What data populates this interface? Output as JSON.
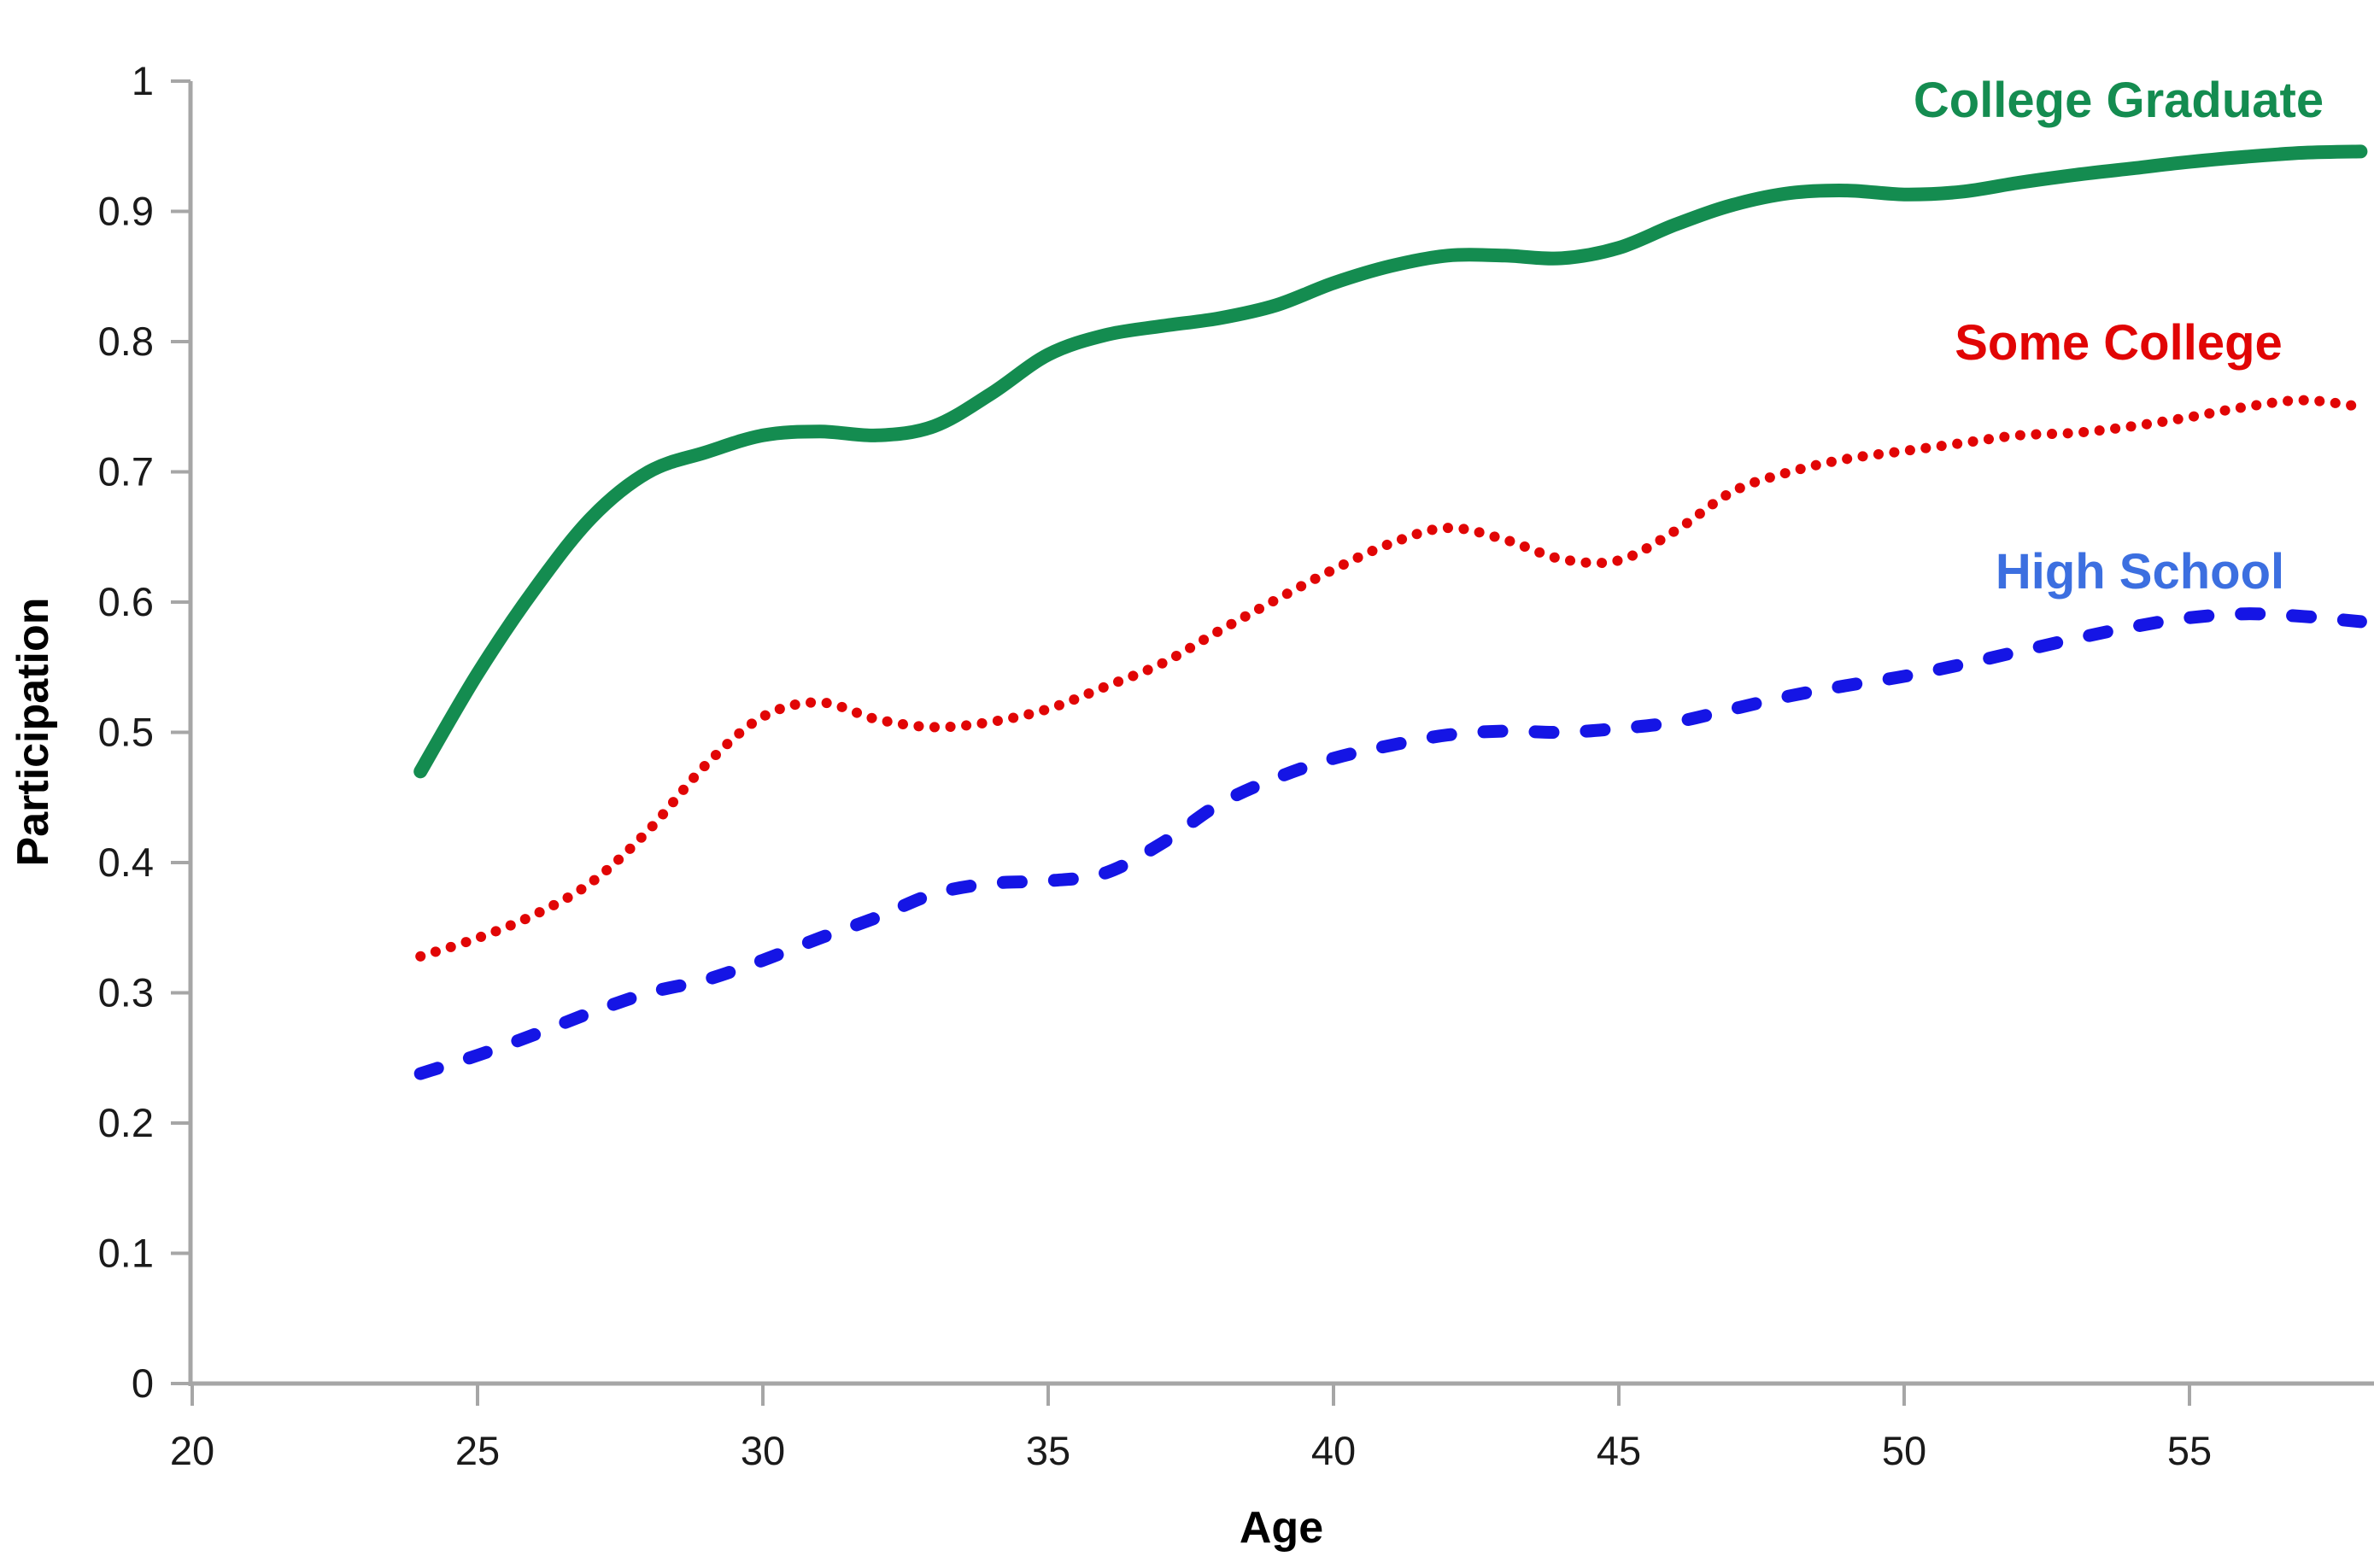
{
  "page": {
    "background": "#ffffff"
  },
  "chart_data": {
    "type": "line",
    "title": "",
    "xlabel": "Age",
    "ylabel": "Participation",
    "grid": "off",
    "legend": "inline-labels-right",
    "axis_color": "#a6a6a6",
    "tick_label_color": "#1a1a1a",
    "xlim": [
      20,
      58.3
    ],
    "ylim": [
      0,
      1
    ],
    "x_ticks": [
      {
        "value": 20,
        "label": "20"
      },
      {
        "value": 25,
        "label": "25"
      },
      {
        "value": 30,
        "label": "30"
      },
      {
        "value": 35,
        "label": "35"
      },
      {
        "value": 40,
        "label": "40"
      },
      {
        "value": 45,
        "label": "45"
      },
      {
        "value": 50,
        "label": "50"
      },
      {
        "value": 55,
        "label": "55"
      }
    ],
    "y_ticks": [
      {
        "value": 0,
        "label": "0"
      },
      {
        "value": 0.1,
        "label": "0.1"
      },
      {
        "value": 0.2,
        "label": "0.2"
      },
      {
        "value": 0.3,
        "label": "0.3"
      },
      {
        "value": 0.4,
        "label": "0.4"
      },
      {
        "value": 0.5,
        "label": "0.5"
      },
      {
        "value": 0.6,
        "label": "0.6"
      },
      {
        "value": 0.7,
        "label": "0.7"
      },
      {
        "value": 0.8,
        "label": "0.8"
      },
      {
        "value": 0.9,
        "label": "0.9"
      },
      {
        "value": 1,
        "label": "1"
      }
    ],
    "x": [
      24,
      25,
      26,
      27,
      28,
      29,
      30,
      31,
      32,
      33,
      34,
      35,
      36,
      37,
      38,
      39,
      40,
      41,
      42,
      43,
      44,
      45,
      46,
      47,
      48,
      49,
      50,
      51,
      52,
      53,
      54,
      55,
      56,
      57,
      58
    ],
    "series": [
      {
        "name": "College Graduate",
        "color": "#148C50",
        "label_color": "#148C50",
        "style": "solid",
        "values": [
          0.47,
          0.545,
          0.61,
          0.665,
          0.7,
          0.715,
          0.728,
          0.731,
          0.728,
          0.735,
          0.76,
          0.79,
          0.805,
          0.812,
          0.818,
          0.828,
          0.845,
          0.858,
          0.866,
          0.866,
          0.864,
          0.872,
          0.89,
          0.905,
          0.914,
          0.916,
          0.913,
          0.915,
          0.922,
          0.928,
          0.933,
          0.938,
          0.942,
          0.945,
          0.946
        ]
      },
      {
        "name": "Some College",
        "color": "#E10505",
        "label_color": "#E10505",
        "style": "dotted",
        "values": [
          0.328,
          0.342,
          0.36,
          0.385,
          0.425,
          0.475,
          0.512,
          0.523,
          0.51,
          0.504,
          0.508,
          0.518,
          0.535,
          0.553,
          0.578,
          0.602,
          0.625,
          0.645,
          0.657,
          0.648,
          0.633,
          0.632,
          0.655,
          0.685,
          0.7,
          0.71,
          0.716,
          0.722,
          0.728,
          0.73,
          0.735,
          0.742,
          0.75,
          0.755,
          0.75
        ]
      },
      {
        "name": "High School",
        "color": "#1515E5",
        "label_color": "#3C6FE0",
        "style": "dashed",
        "values": [
          0.238,
          0.252,
          0.268,
          0.285,
          0.3,
          0.31,
          0.325,
          0.342,
          0.358,
          0.376,
          0.384,
          0.386,
          0.392,
          0.415,
          0.445,
          0.465,
          0.48,
          0.49,
          0.498,
          0.501,
          0.5,
          0.503,
          0.508,
          0.518,
          0.528,
          0.536,
          0.543,
          0.552,
          0.562,
          0.572,
          0.581,
          0.588,
          0.591,
          0.589,
          0.585
        ]
      }
    ],
    "series_label_positions": [
      {
        "x": 2480,
        "y": 137
      },
      {
        "x": 2480,
        "y": 421
      },
      {
        "x": 2505,
        "y": 689
      }
    ]
  }
}
